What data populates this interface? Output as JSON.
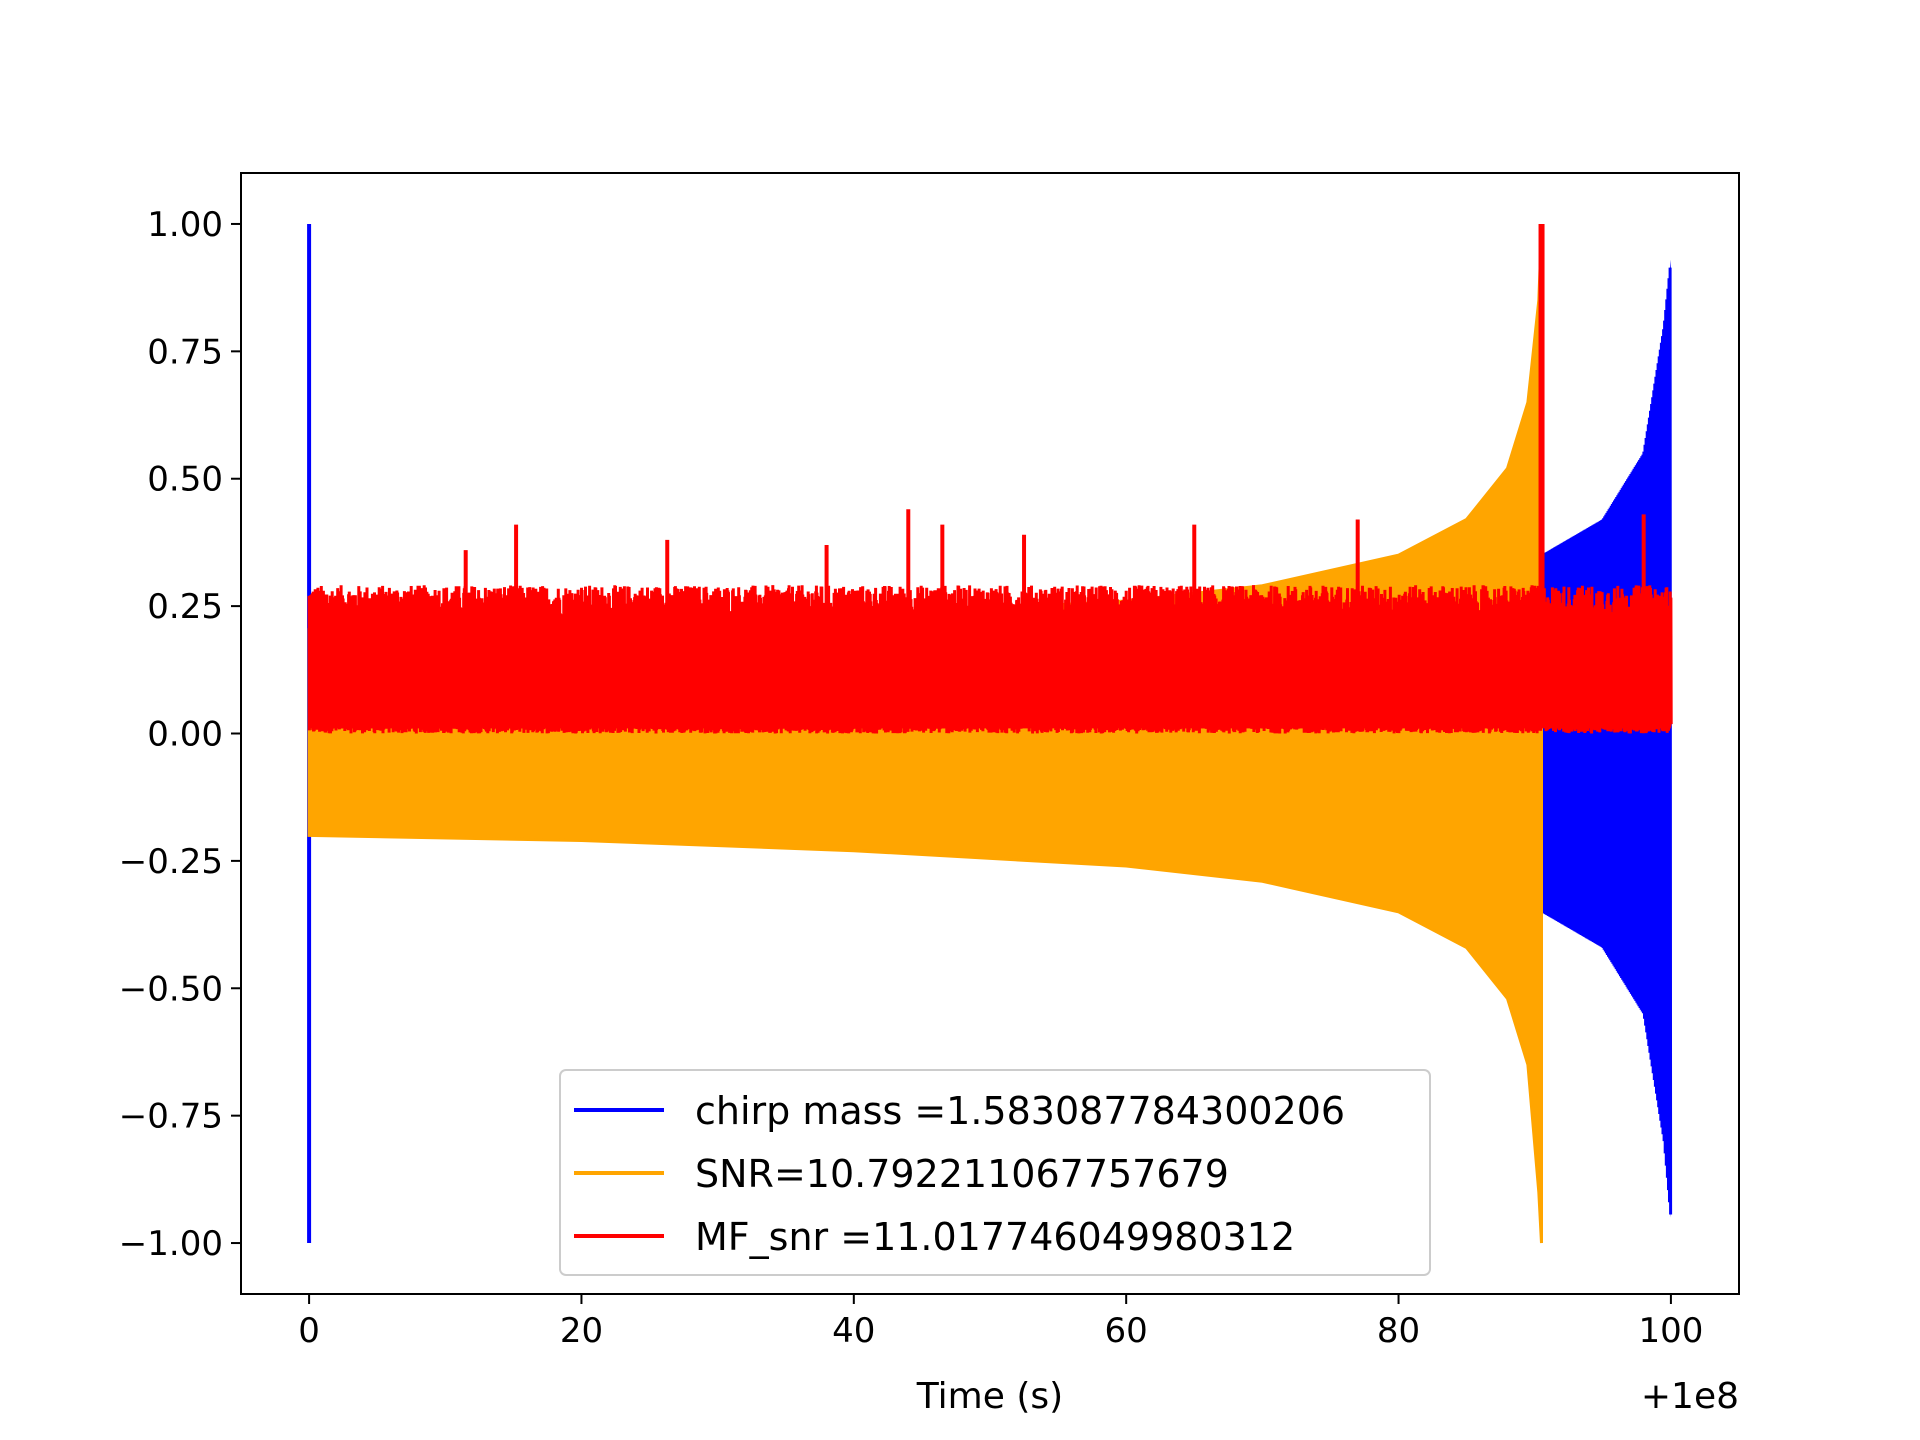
{
  "chart_data": {
    "type": "line",
    "title": "",
    "xlabel": "Time (s)",
    "ylabel": "",
    "x_offset_label": "+1e8",
    "xlim": [
      -5,
      105
    ],
    "ylim": [
      -1.1,
      1.1
    ],
    "xticks": [
      0,
      20,
      40,
      60,
      80,
      100
    ],
    "xtick_labels": [
      "0",
      "20",
      "40",
      "60",
      "80",
      "100"
    ],
    "yticks": [
      1.0,
      0.75,
      0.5,
      0.25,
      0.0,
      -0.25,
      -0.5,
      -0.75,
      -1.0
    ],
    "ytick_labels": [
      "1.00",
      "0.75",
      "0.50",
      "0.25",
      "0.00",
      "−0.25",
      "−0.50",
      "−0.75",
      "−1.00"
    ],
    "grid": false,
    "legend_position": "lower-center",
    "series": [
      {
        "name": "chirp mass =1.583087784300206",
        "color": "#0000ff",
        "description_points": {
          "spike_at_start": {
            "x": 0,
            "ymax": 1.0,
            "ymin": -1.0
          },
          "envelope": [
            {
              "x": 90.5,
              "upper": 0.35,
              "lower": -0.35
            },
            {
              "x": 95,
              "upper": 0.42,
              "lower": -0.42
            },
            {
              "x": 98,
              "upper": 0.55,
              "lower": -0.55
            },
            {
              "x": 99.5,
              "upper": 0.8,
              "lower": -0.8
            },
            {
              "x": 100,
              "upper": 0.93,
              "lower": -0.95
            }
          ]
        }
      },
      {
        "name": "SNR=10.792211067757679",
        "color": "#ffa500",
        "description_points": {
          "envelope": [
            {
              "x": 0,
              "upper": 0.2,
              "lower": -0.2
            },
            {
              "x": 20,
              "upper": 0.21,
              "lower": -0.21
            },
            {
              "x": 40,
              "upper": 0.23,
              "lower": -0.23
            },
            {
              "x": 60,
              "upper": 0.26,
              "lower": -0.26
            },
            {
              "x": 70,
              "upper": 0.29,
              "lower": -0.29
            },
            {
              "x": 80,
              "upper": 0.35,
              "lower": -0.35
            },
            {
              "x": 85,
              "upper": 0.42,
              "lower": -0.42
            },
            {
              "x": 88,
              "upper": 0.52,
              "lower": -0.52
            },
            {
              "x": 89.5,
              "upper": 0.65,
              "lower": -0.65
            },
            {
              "x": 90.3,
              "upper": 0.85,
              "lower": -0.9
            },
            {
              "x": 90.5,
              "upper": 0.99,
              "lower": -1.0
            }
          ]
        }
      },
      {
        "name": "MF_snr =11.017746049980312",
        "color": "#ff0000",
        "description_points": {
          "band": {
            "x_start": 0,
            "x_end": 100,
            "lower": 0.0,
            "upper": 0.28
          },
          "peak": {
            "x": 90.5,
            "y": 1.0
          },
          "outliers": [
            {
              "x": 11.5,
              "y": 0.36
            },
            {
              "x": 15.2,
              "y": 0.41
            },
            {
              "x": 26.3,
              "y": 0.38
            },
            {
              "x": 38.0,
              "y": 0.37
            },
            {
              "x": 44.0,
              "y": 0.44
            },
            {
              "x": 46.5,
              "y": 0.41
            },
            {
              "x": 52.5,
              "y": 0.39
            },
            {
              "x": 65.0,
              "y": 0.41
            },
            {
              "x": 77.0,
              "y": 0.42
            },
            {
              "x": 98.0,
              "y": 0.43
            }
          ]
        }
      }
    ]
  }
}
